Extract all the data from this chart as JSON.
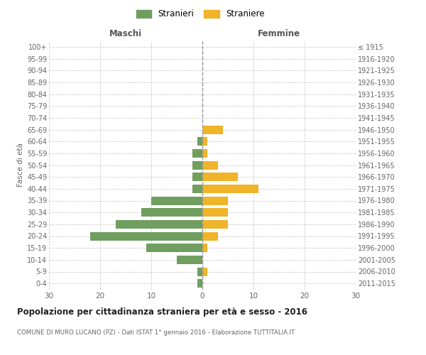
{
  "age_groups": [
    "0-4",
    "5-9",
    "10-14",
    "15-19",
    "20-24",
    "25-29",
    "30-34",
    "35-39",
    "40-44",
    "45-49",
    "50-54",
    "55-59",
    "60-64",
    "65-69",
    "70-74",
    "75-79",
    "80-84",
    "85-89",
    "90-94",
    "95-99",
    "100+"
  ],
  "birth_years": [
    "2011-2015",
    "2006-2010",
    "2001-2005",
    "1996-2000",
    "1991-1995",
    "1986-1990",
    "1981-1985",
    "1976-1980",
    "1971-1975",
    "1966-1970",
    "1961-1965",
    "1956-1960",
    "1951-1955",
    "1946-1950",
    "1941-1945",
    "1936-1940",
    "1931-1935",
    "1926-1930",
    "1921-1925",
    "1916-1920",
    "≤ 1915"
  ],
  "males": [
    1,
    1,
    5,
    11,
    22,
    17,
    12,
    10,
    2,
    2,
    2,
    2,
    1,
    0,
    0,
    0,
    0,
    0,
    0,
    0,
    0
  ],
  "females": [
    0,
    1,
    0,
    1,
    3,
    5,
    5,
    5,
    11,
    7,
    3,
    1,
    1,
    4,
    0,
    0,
    0,
    0,
    0,
    0,
    0
  ],
  "male_color": "#6f9e5f",
  "female_color": "#f0b429",
  "male_label": "Stranieri",
  "female_label": "Straniere",
  "title": "Popolazione per cittadinanza straniera per età e sesso - 2016",
  "subtitle": "COMUNE DI MURO LUCANO (PZ) - Dati ISTAT 1° gennaio 2016 - Elaborazione TUTTITALIA.IT",
  "xlabel_left": "Maschi",
  "xlabel_right": "Femmine",
  "ylabel_left": "Fasce di età",
  "xlim": 30,
  "background_color": "#ffffff",
  "grid_color": "#cccccc"
}
